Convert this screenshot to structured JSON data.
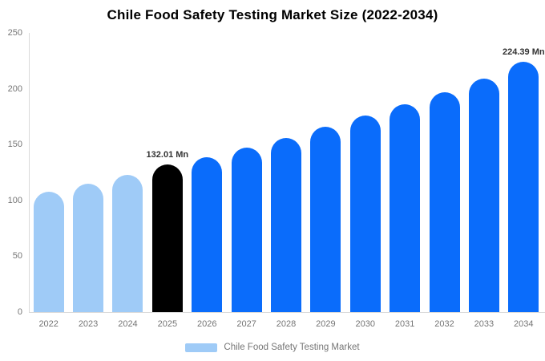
{
  "chart_data": {
    "type": "bar",
    "title": "Chile Food Safety Testing Market Size (2022-2034)",
    "categories": [
      "2022",
      "2023",
      "2024",
      "2025",
      "2026",
      "2027",
      "2028",
      "2029",
      "2030",
      "2031",
      "2032",
      "2033",
      "2034"
    ],
    "values": [
      108,
      115,
      123,
      132.01,
      139,
      147,
      156,
      166,
      176,
      186,
      197,
      209,
      224.39
    ],
    "bar_roles": [
      "historical",
      "historical",
      "historical",
      "base_year",
      "forecast",
      "forecast",
      "forecast",
      "forecast",
      "forecast",
      "forecast",
      "forecast",
      "forecast",
      "forecast"
    ],
    "annotations": [
      {
        "index": 3,
        "text": "132.01 Mn"
      },
      {
        "index": 12,
        "text": "224.39 Mn"
      }
    ],
    "ylim": [
      0,
      250
    ],
    "yticks": [
      "0",
      "50",
      "100",
      "150",
      "200",
      "250"
    ],
    "xlabel": "",
    "ylabel": "",
    "grid": false,
    "legend_position": "bottom",
    "legend": {
      "label": "Chile Food Safety Testing Market",
      "swatch_color": "#9fcbf7"
    },
    "colors": {
      "historical": "#9fcbf7",
      "base_year": "#000000",
      "forecast": "#0a6cfb",
      "axis_line": "#d9d9d9",
      "tick_text": "#757575",
      "data_label_text": "#333333"
    }
  }
}
